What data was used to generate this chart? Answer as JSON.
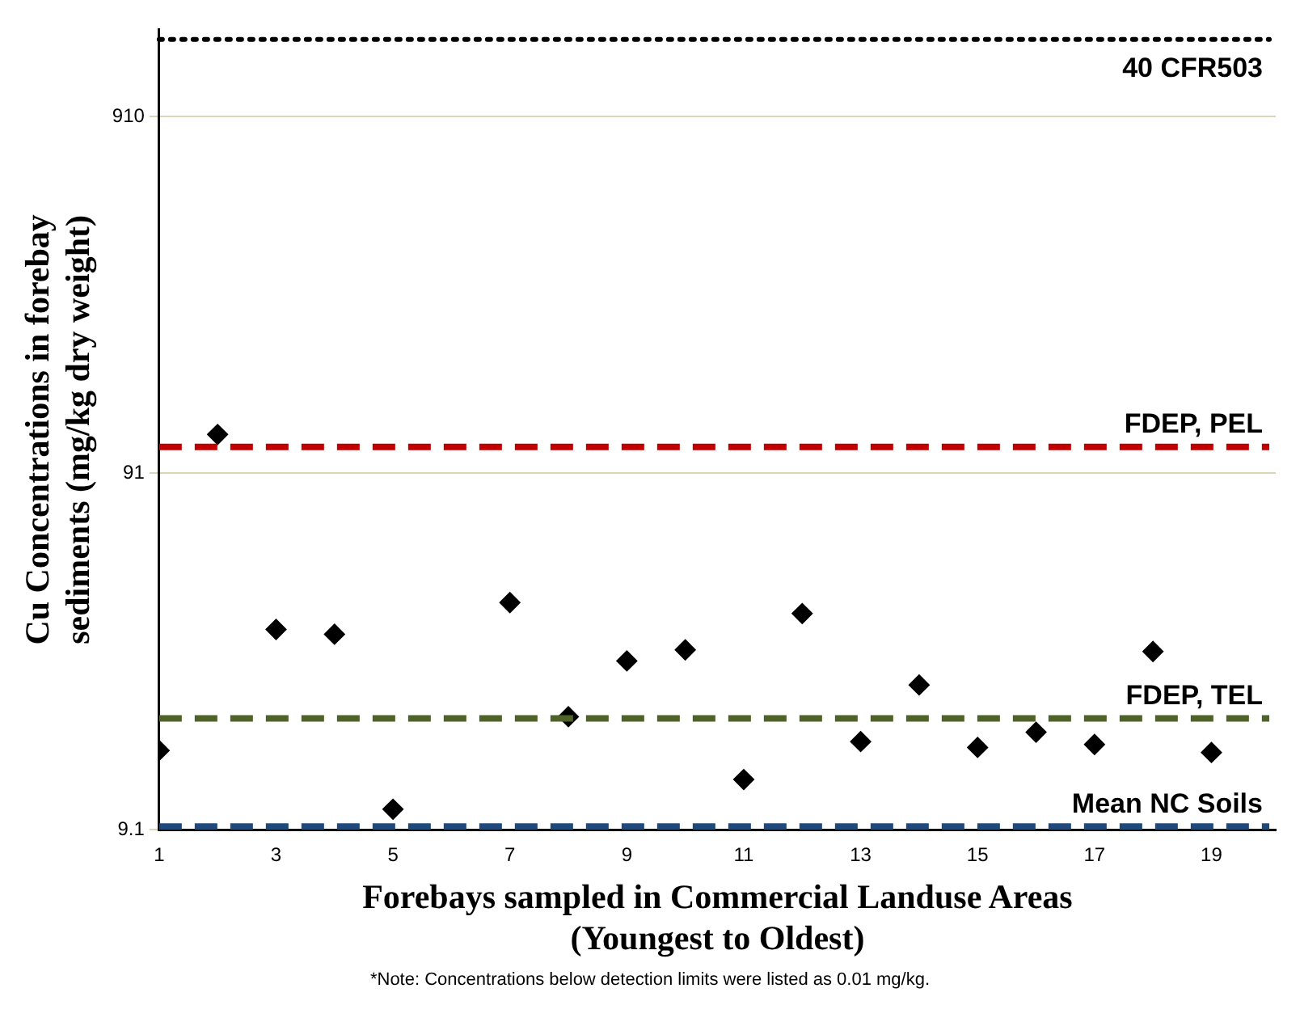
{
  "chart_data": {
    "type": "scatter",
    "xlabel": "Forebays sampled in Commercial Landuse Areas\n(Youngest to Oldest)",
    "ylabel": "Cu Concentrations in forebay\nsediments (mg/kg dry weight)",
    "x": [
      1,
      2,
      3,
      4,
      5,
      6,
      7,
      8,
      9,
      10,
      11,
      12,
      13,
      14,
      15,
      16,
      17,
      18,
      19
    ],
    "series": [
      {
        "color": "#000000",
        "values": [
          15.2,
          117,
          33.2,
          32.2,
          10.4,
          null,
          39.5,
          18.9,
          27.1,
          29.1,
          12.6,
          36.8,
          16.1,
          23.2,
          15.5,
          17.1,
          15.8,
          28.8,
          15.0
        ]
      }
    ],
    "xlim": [
      1,
      20.1
    ],
    "xticks": [
      1,
      3,
      5,
      7,
      9,
      11,
      13,
      15,
      17,
      19
    ],
    "ylim": [
      9.1,
      1600
    ],
    "yticks": [
      9.1,
      91,
      910
    ],
    "log": "y",
    "grid": "y",
    "marker": "diamond",
    "legend": false,
    "ref_lines": [
      {
        "axis": "y",
        "value": 1500,
        "label": "40 CFR503",
        "color": "#000000",
        "line_style": "dotted"
      },
      {
        "axis": "y",
        "value": 108,
        "label": "FDEP, PEL",
        "color": "#c00000",
        "line_style": "dashed"
      },
      {
        "axis": "y",
        "value": 18.7,
        "label": "FDEP, TEL",
        "color": "#4f6228",
        "line_style": "dashed"
      },
      {
        "axis": "y",
        "value": 9.3,
        "label": "Mean NC Soils",
        "color": "#1f497d",
        "line_style": "dashed"
      }
    ],
    "annotations": [
      "*Note: Concentrations below detection limits were listed as 0.01 mg/kg."
    ]
  }
}
